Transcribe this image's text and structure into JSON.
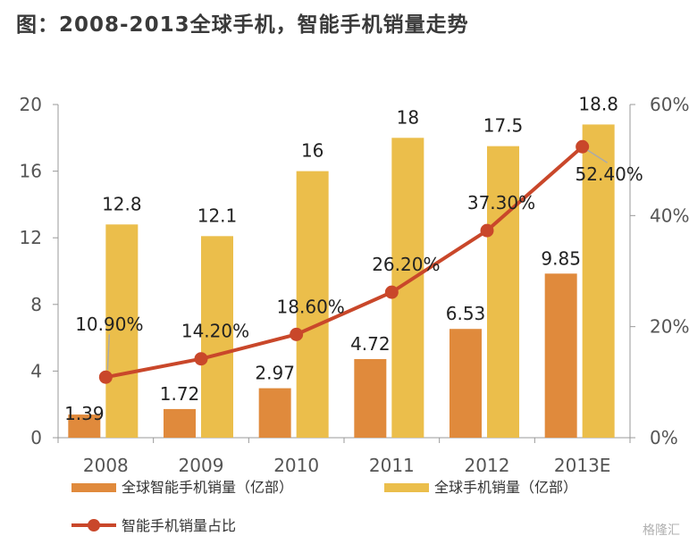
{
  "title": "图：2008-2013全球手机，智能手机销量走势",
  "watermark": "格隆汇",
  "chart_data": {
    "type": "bar",
    "categories": [
      "2008",
      "2009",
      "2010",
      "2011",
      "2012",
      "2013E"
    ],
    "series": [
      {
        "name": "全球智能手机销量（亿部）",
        "type": "bar",
        "axis": "left",
        "values": [
          1.39,
          1.72,
          2.97,
          4.72,
          6.53,
          9.85
        ],
        "labels": [
          "1.39",
          "1.72",
          "2.97",
          "4.72",
          "6.53",
          "9.85"
        ],
        "color": "#E08A3C"
      },
      {
        "name": "全球手机销量（亿部）",
        "type": "bar",
        "axis": "left",
        "values": [
          12.8,
          12.1,
          16,
          18,
          17.5,
          18.8
        ],
        "labels": [
          "12.8",
          "12.1",
          "16",
          "18",
          "17.5",
          "18.8"
        ],
        "color": "#EBBE4B"
      },
      {
        "name": "智能手机销量占比",
        "type": "line",
        "axis": "right",
        "values": [
          10.9,
          14.2,
          18.6,
          26.2,
          37.3,
          52.4
        ],
        "labels": [
          "10.90%",
          "14.20%",
          "18.60%",
          "26.20%",
          "37.30%",
          "52.40%"
        ],
        "color": "#C9472A"
      }
    ],
    "y_left": {
      "min": 0,
      "max": 20,
      "ticks": [
        "0",
        "4",
        "8",
        "12",
        "16",
        "20"
      ]
    },
    "y_right": {
      "min": 0,
      "max": 60,
      "ticks": [
        "0%",
        "20%",
        "40%",
        "60%"
      ]
    },
    "legend_position": "bottom"
  }
}
